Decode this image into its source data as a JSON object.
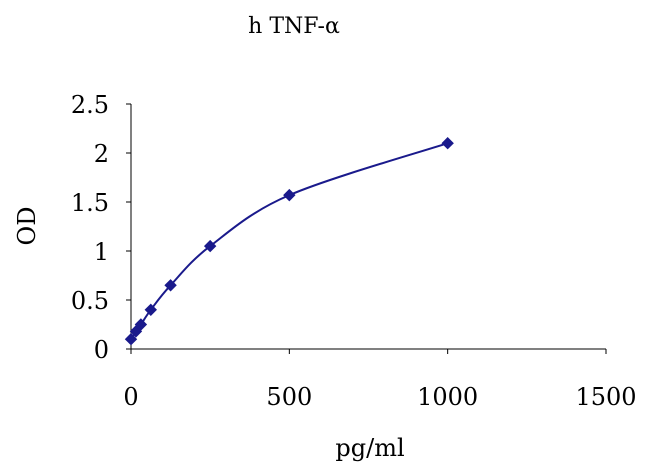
{
  "chart_data": {
    "type": "scatter",
    "title": "h TNF-α",
    "xlabel": "pg/ml",
    "ylabel": "OD",
    "xlim": [
      0,
      1500
    ],
    "ylim": [
      0,
      2.5
    ],
    "x_ticks": [
      0,
      500,
      1000,
      1500
    ],
    "y_ticks": [
      0,
      0.5,
      1,
      1.5,
      2,
      2.5
    ],
    "x_tick_labels": [
      "0",
      "500",
      "1000",
      "1500"
    ],
    "y_tick_labels": [
      "0",
      "0.5",
      "1",
      "1.5",
      "2",
      "2.5"
    ],
    "grid": false,
    "smooth_line": true,
    "marker": "diamond",
    "series_color": "#1a1a8c",
    "series": [
      {
        "x": [
          0,
          15.6,
          31.25,
          62.5,
          125,
          250,
          500,
          1000
        ],
        "y": [
          0.1,
          0.18,
          0.25,
          0.4,
          0.65,
          1.05,
          1.57,
          2.1
        ]
      }
    ]
  }
}
